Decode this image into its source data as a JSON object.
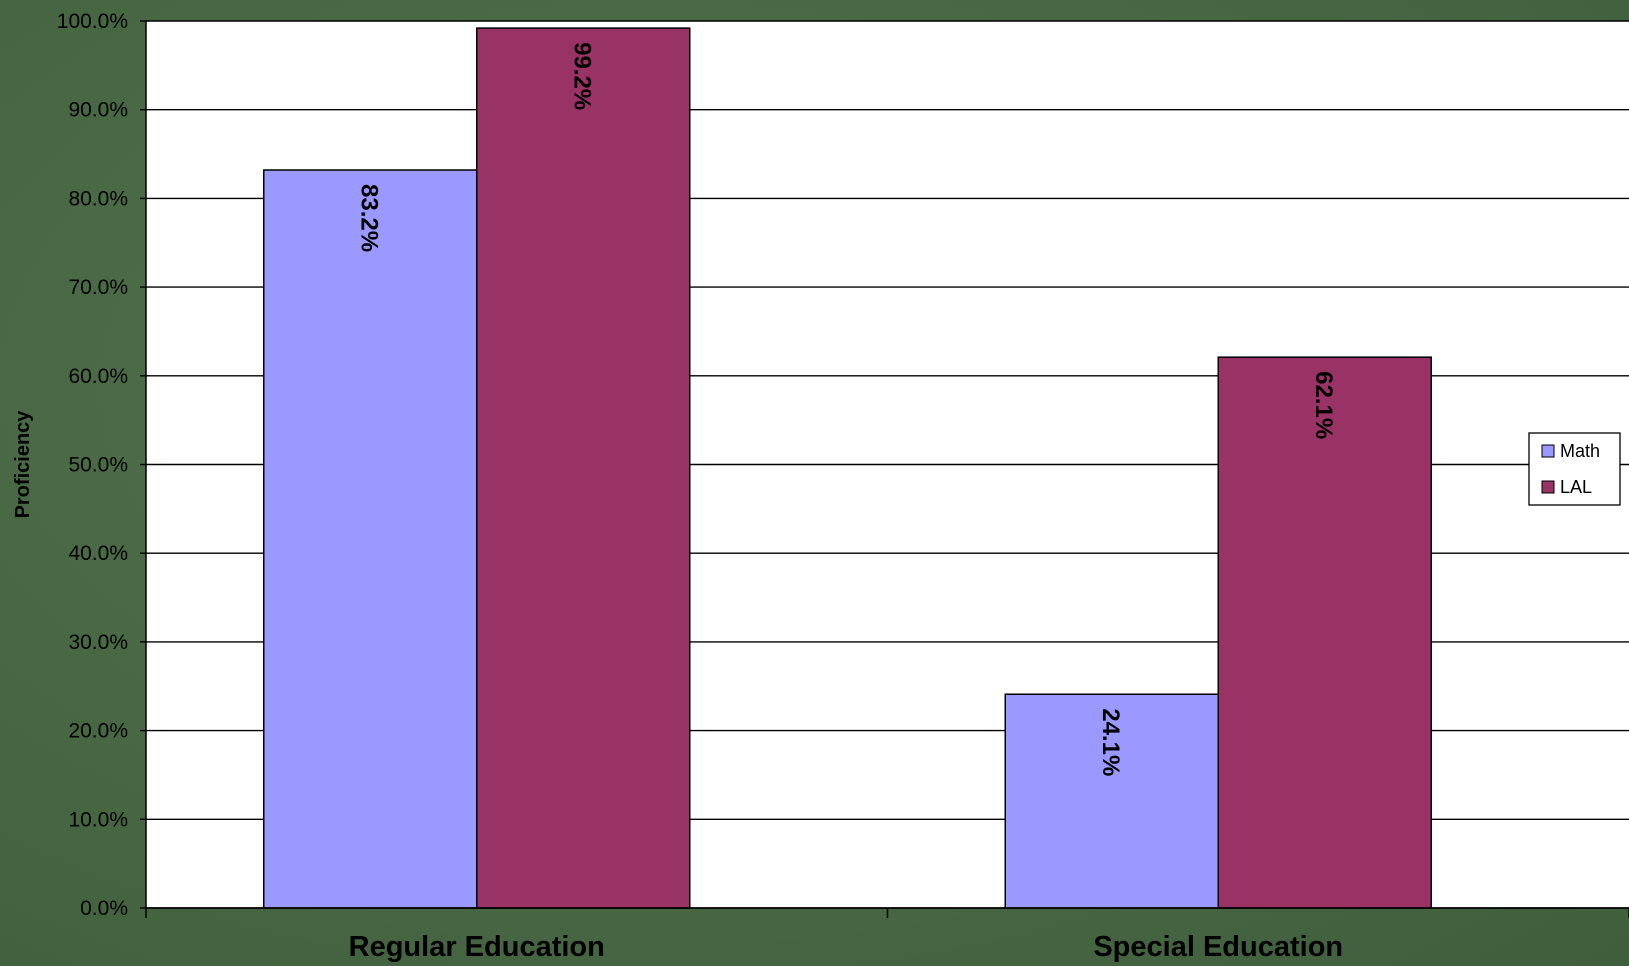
{
  "chart_data": {
    "type": "bar",
    "categories": [
      "Regular Education",
      "Special Education"
    ],
    "series": [
      {
        "name": "Math",
        "values": [
          83.2,
          24.1
        ],
        "labels": [
          "83.2%",
          "24.1%"
        ],
        "color": "#9999ff"
      },
      {
        "name": "LAL",
        "values": [
          99.2,
          62.1
        ],
        "labels": [
          "99.2%",
          "62.1%"
        ],
        "color": "#993366"
      }
    ],
    "ylabel": "Proficiency",
    "xlabel": "",
    "ylim": [
      0,
      100
    ],
    "yticks": [
      0,
      10,
      20,
      30,
      40,
      50,
      60,
      70,
      80,
      90,
      100
    ],
    "ytick_labels": [
      "0.0%",
      "10.0%",
      "20.0%",
      "30.0%",
      "40.0%",
      "50.0%",
      "60.0%",
      "70.0%",
      "80.0%",
      "90.0%",
      "100.0%"
    ],
    "grid": true,
    "legend_position": "right",
    "plot_background": "#ffffff",
    "page_background": "#4a6b47"
  }
}
